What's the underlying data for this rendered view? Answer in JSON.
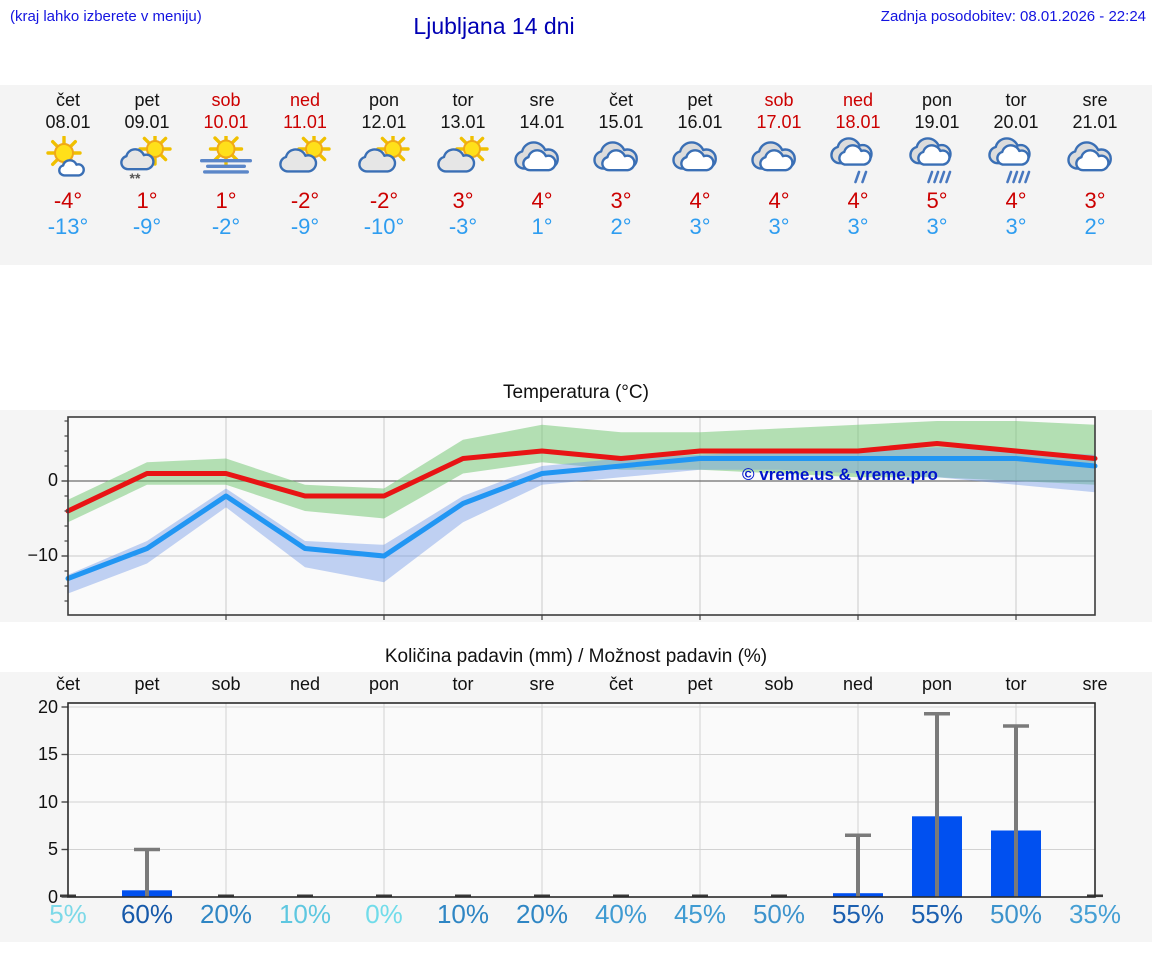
{
  "header": {
    "hint": "(kraj lahko izberete v meniju)",
    "title": "Ljubljana 14 dni",
    "updated": "Zadnja posodobitev: 08.01.2026 - 22:24"
  },
  "watermark": "© vreme.us & vreme.pro",
  "colors": {
    "header_blue": "#1414e0",
    "title_blue": "#0000b4",
    "weekend_red": "#cc0000",
    "high_red": "#cc0000",
    "low_blue": "#2e9df0",
    "temp_max_line": "#e81414",
    "temp_min_line": "#2196f3",
    "temp_max_band": "rgba(120,200,120,0.55)",
    "temp_min_band": "rgba(110,150,230,0.42)",
    "bar_blue": "#0050f0",
    "whisker_gray": "#7a7a7a"
  },
  "days": [
    {
      "name": "čet",
      "date": "08.01",
      "weekend": false,
      "icon": "sun-cloud",
      "high": "-4°",
      "low": "-13°"
    },
    {
      "name": "pet",
      "date": "09.01",
      "weekend": false,
      "icon": "sun-cloud-snow",
      "high": "1°",
      "low": "-9°"
    },
    {
      "name": "sob",
      "date": "10.01",
      "weekend": true,
      "icon": "sun-fog",
      "high": "1°",
      "low": "-2°"
    },
    {
      "name": "ned",
      "date": "11.01",
      "weekend": true,
      "icon": "cloud-sun",
      "high": "-2°",
      "low": "-9°"
    },
    {
      "name": "pon",
      "date": "12.01",
      "weekend": false,
      "icon": "cloud-sun",
      "high": "-2°",
      "low": "-10°"
    },
    {
      "name": "tor",
      "date": "13.01",
      "weekend": false,
      "icon": "cloud-sun",
      "high": "3°",
      "low": "-3°"
    },
    {
      "name": "sre",
      "date": "14.01",
      "weekend": false,
      "icon": "cloudy",
      "high": "4°",
      "low": "1°"
    },
    {
      "name": "čet",
      "date": "15.01",
      "weekend": false,
      "icon": "cloudy",
      "high": "3°",
      "low": "2°"
    },
    {
      "name": "pet",
      "date": "16.01",
      "weekend": false,
      "icon": "cloudy",
      "high": "4°",
      "low": "3°"
    },
    {
      "name": "sob",
      "date": "17.01",
      "weekend": true,
      "icon": "cloudy",
      "high": "4°",
      "low": "3°"
    },
    {
      "name": "ned",
      "date": "18.01",
      "weekend": true,
      "icon": "cloud-rain-light",
      "high": "4°",
      "low": "3°"
    },
    {
      "name": "pon",
      "date": "19.01",
      "weekend": false,
      "icon": "cloud-rain",
      "high": "5°",
      "low": "3°"
    },
    {
      "name": "tor",
      "date": "20.01",
      "weekend": false,
      "icon": "cloud-rain",
      "high": "4°",
      "low": "3°"
    },
    {
      "name": "sre",
      "date": "21.01",
      "weekend": false,
      "icon": "cloudy",
      "high": "3°",
      "low": "2°"
    }
  ],
  "chart_data": [
    {
      "type": "line",
      "title": "Temperatura (°C)",
      "x_labels": [
        "08.01",
        "09.01",
        "10.01",
        "11.01",
        "12.01",
        "13.01",
        "14.01",
        "15.01",
        "16.01",
        "17.01",
        "18.01",
        "19.01",
        "20.01",
        "21.01"
      ],
      "series": [
        {
          "name": "max temperature",
          "color": "#e81414",
          "values": [
            -4,
            1,
            1,
            -2,
            -2,
            3,
            4,
            3,
            4,
            4,
            4,
            5,
            4,
            3
          ]
        },
        {
          "name": "min temperature",
          "color": "#2196f3",
          "values": [
            -13,
            -9,
            -2,
            -9,
            -10,
            -3,
            1,
            2,
            3,
            3,
            3,
            3,
            3,
            2
          ]
        }
      ],
      "bands": {
        "max_upper": [
          -2.5,
          2.5,
          3,
          -0.5,
          -1,
          5.5,
          7.5,
          6.5,
          6.5,
          7,
          7.5,
          8,
          8,
          7.5
        ],
        "max_lower": [
          -5.5,
          -0.5,
          -0.5,
          -4,
          -5,
          1,
          2.5,
          1.5,
          1.5,
          1,
          0.5,
          0.5,
          0,
          -0.5
        ],
        "min_upper": [
          -12.5,
          -8,
          -1,
          -8,
          -8.5,
          -2,
          2,
          3,
          3.5,
          4,
          4,
          4.5,
          4,
          3.5
        ],
        "min_lower": [
          -15,
          -11,
          -3.5,
          -11.5,
          -13.5,
          -5.5,
          -0.5,
          0.5,
          1.5,
          1.5,
          1,
          0.5,
          -0.5,
          -1.5
        ]
      },
      "ylim": [
        -17.9,
        8.5
      ],
      "yticks": [
        0,
        -10
      ],
      "ytick_labels": [
        "0",
        "−10"
      ],
      "grid": true,
      "grid_x_at_day_index": [
        2,
        4,
        6,
        8,
        10,
        12
      ]
    },
    {
      "type": "bar",
      "title": "Količina padavin (mm) / Možnost padavin (%)",
      "categories": [
        "čet",
        "pet",
        "sob",
        "ned",
        "pon",
        "tor",
        "sre",
        "čet",
        "pet",
        "sob",
        "ned",
        "pon",
        "tor",
        "sre"
      ],
      "values": [
        0,
        0.7,
        0,
        0,
        0,
        0,
        0,
        0,
        0,
        0,
        0.4,
        8.5,
        7,
        0
      ],
      "whisker_max": [
        0,
        5,
        0,
        0,
        0,
        0,
        0,
        0,
        0,
        0,
        6.5,
        19.3,
        18,
        0
      ],
      "ylim": [
        0,
        20.4
      ],
      "yticks": [
        20,
        15,
        10,
        5,
        0
      ],
      "ytick_labels": [
        "20",
        "15",
        "10",
        "5",
        "0"
      ],
      "grid": true,
      "probabilities": [
        {
          "label": "5%",
          "color": "#7cd9e8"
        },
        {
          "label": "60%",
          "color": "#1659aa"
        },
        {
          "label": "20%",
          "color": "#2f86c4"
        },
        {
          "label": "10%",
          "color": "#5ec7e0"
        },
        {
          "label": "0%",
          "color": "#71dcea"
        },
        {
          "label": "10%",
          "color": "#2f86c4"
        },
        {
          "label": "20%",
          "color": "#2f86c4"
        },
        {
          "label": "40%",
          "color": "#3f9bd2"
        },
        {
          "label": "45%",
          "color": "#3f9bd2"
        },
        {
          "label": "50%",
          "color": "#3d93cc"
        },
        {
          "label": "55%",
          "color": "#1c60b0"
        },
        {
          "label": "55%",
          "color": "#1c60b0"
        },
        {
          "label": "50%",
          "color": "#3d93cc"
        },
        {
          "label": "35%",
          "color": "#459fd4"
        }
      ]
    }
  ]
}
